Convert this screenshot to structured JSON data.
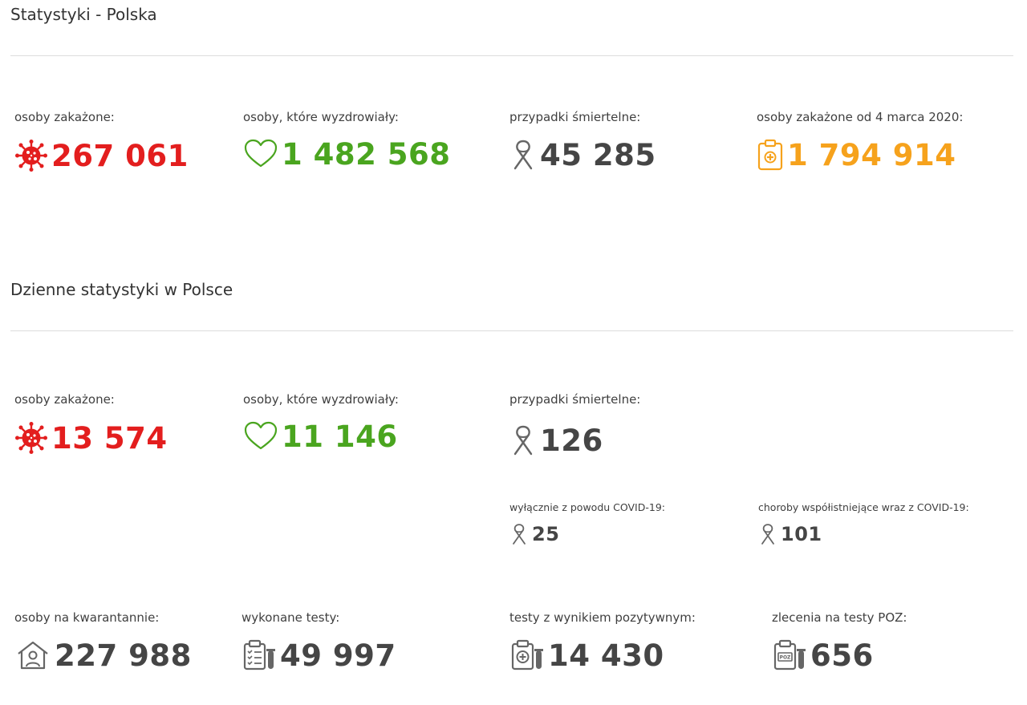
{
  "overall": {
    "title": "Statystyki - Polska",
    "infected": {
      "label": "osoby zakażone:",
      "value": "267 061",
      "icon": "virus-icon"
    },
    "recovered": {
      "label": "osoby, które wyzdrowiały:",
      "value": "1 482 568",
      "icon": "heart-icon"
    },
    "deaths": {
      "label": "przypadki śmiertelne:",
      "value": "45 285",
      "icon": "ribbon-icon"
    },
    "total_infected": {
      "label": "osoby zakażone od 4 marca 2020:",
      "value": "1 794 914",
      "icon": "clipboard-medical-icon"
    }
  },
  "daily": {
    "title": "Dzienne statystyki w Polsce",
    "infected": {
      "label": "osoby zakażone:",
      "value": "13 574",
      "icon": "virus-icon"
    },
    "recovered": {
      "label": "osoby, które wyzdrowiały:",
      "value": "11 146",
      "icon": "heart-icon"
    },
    "deaths": {
      "label": "przypadki śmiertelne:",
      "value": "126",
      "icon": "ribbon-icon"
    },
    "deaths_covid_only": {
      "label": "wyłącznie z powodu COVID-19:",
      "value": "25",
      "icon": "ribbon-icon"
    },
    "deaths_comorbid": {
      "label": "choroby współistniejące wraz z COVID-19:",
      "value": "101",
      "icon": "ribbon-icon"
    },
    "quarantine": {
      "label": "osoby na kwarantannie:",
      "value": "227 988",
      "icon": "house-person-icon"
    },
    "tests": {
      "label": "wykonane testy:",
      "value": "49 997",
      "icon": "checklist-tube-icon"
    },
    "positive_tests": {
      "label": "testy z wynikiem pozytywnym:",
      "value": "14 430",
      "icon": "positive-test-icon"
    },
    "poz_orders": {
      "label": "zlecenia na testy POZ:",
      "value": "656",
      "icon": "poz-test-icon"
    }
  },
  "colors": {
    "infected": "#e31e1e",
    "recovered": "#4aa51f",
    "deaths": "#454545",
    "total": "#f6a21c"
  }
}
